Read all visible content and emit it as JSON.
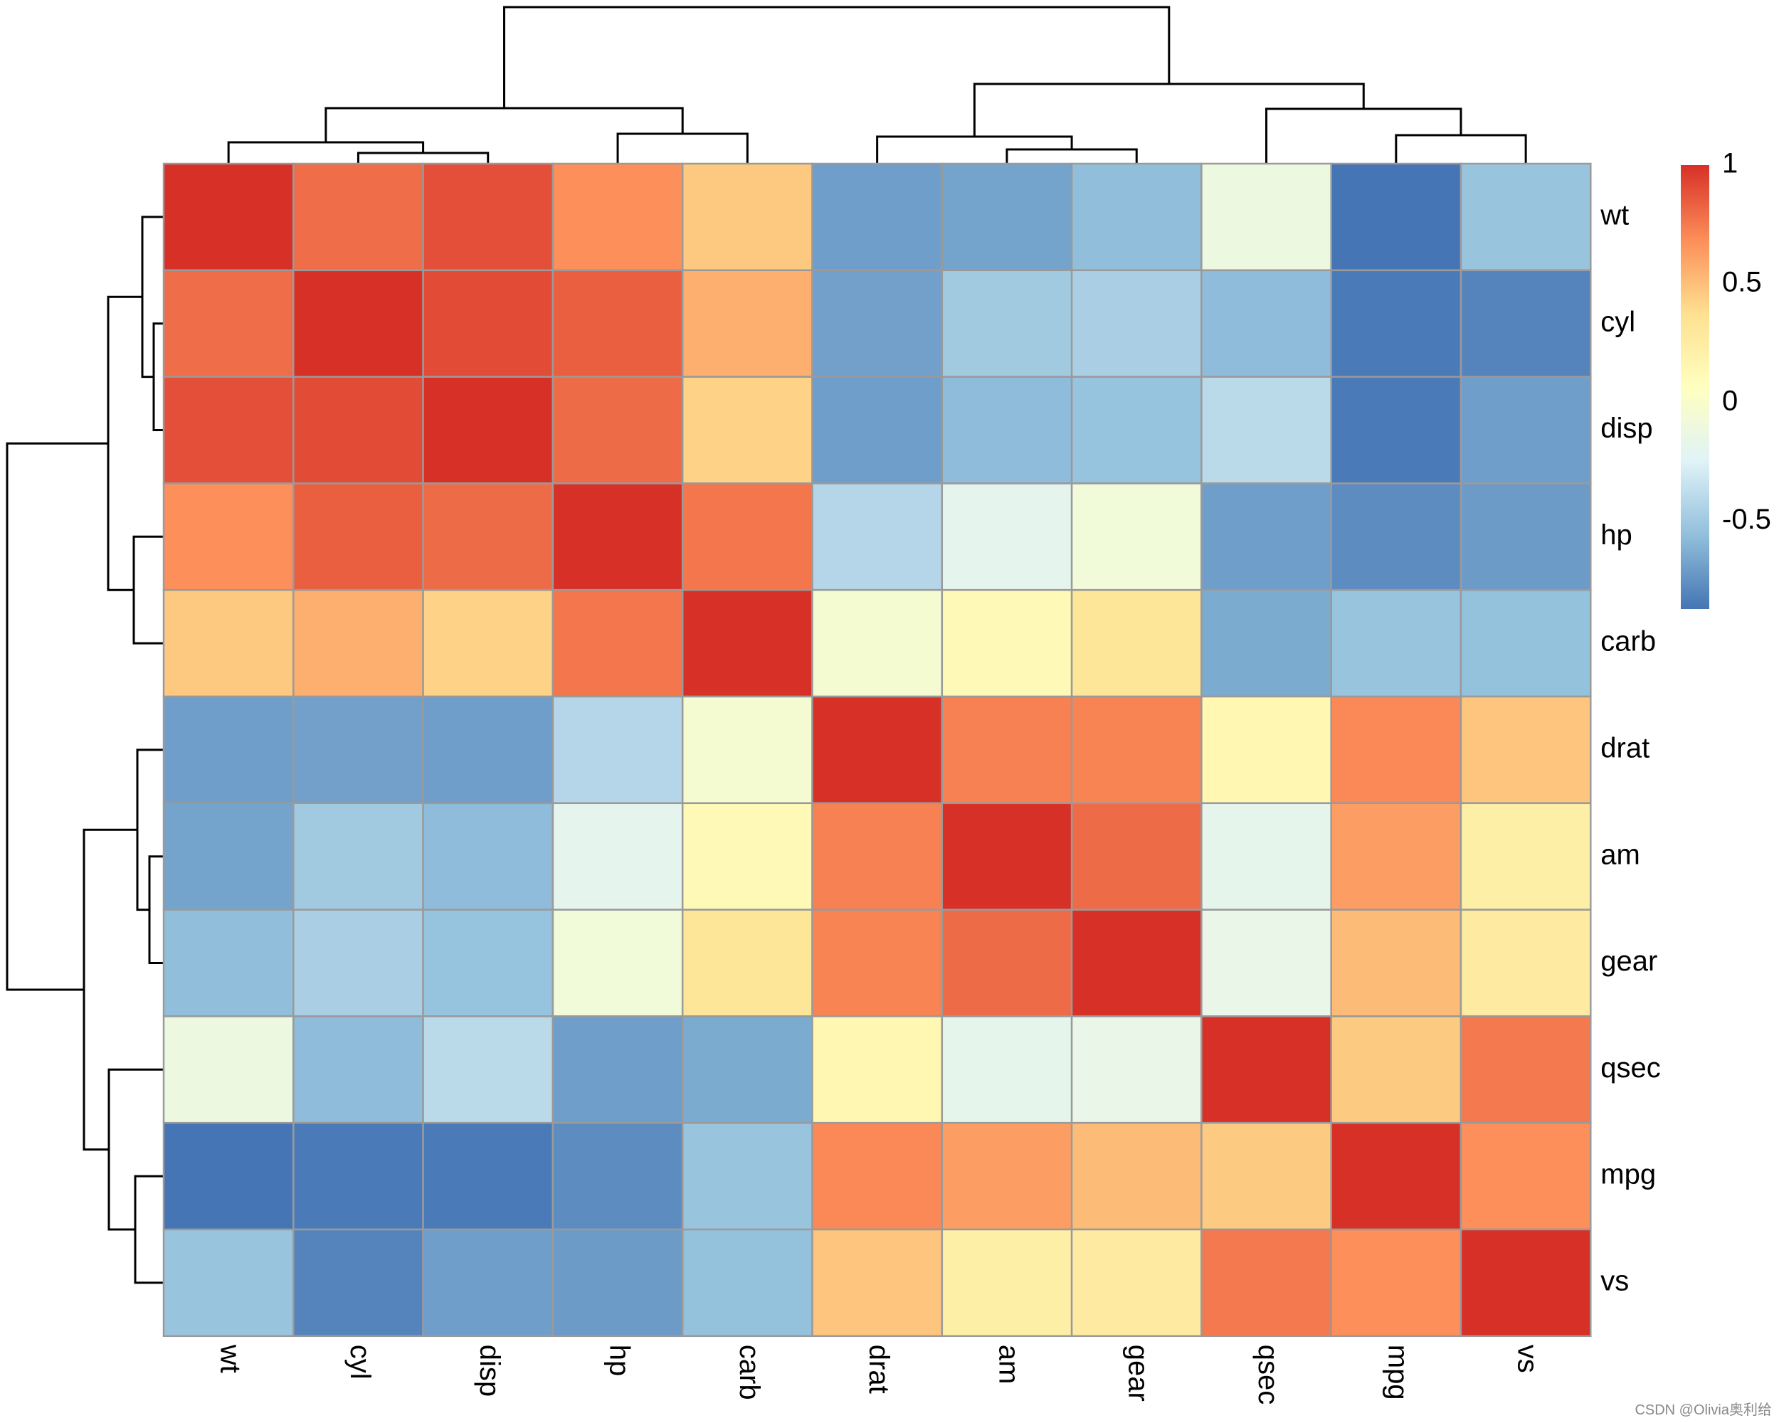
{
  "chart_data": {
    "type": "heatmap",
    "title": "",
    "rows": [
      "wt",
      "cyl",
      "disp",
      "hp",
      "carb",
      "drat",
      "am",
      "gear",
      "qsec",
      "mpg",
      "vs"
    ],
    "columns": [
      "wt",
      "cyl",
      "disp",
      "hp",
      "carb",
      "drat",
      "am",
      "gear",
      "qsec",
      "mpg",
      "vs"
    ],
    "values": [
      [
        1.0,
        0.78,
        0.89,
        0.66,
        0.43,
        -0.71,
        -0.69,
        -0.58,
        -0.17,
        -0.87,
        -0.55
      ],
      [
        0.78,
        1.0,
        0.9,
        0.83,
        0.53,
        -0.7,
        -0.52,
        -0.49,
        -0.59,
        -0.85,
        -0.81
      ],
      [
        0.89,
        0.9,
        1.0,
        0.79,
        0.39,
        -0.71,
        -0.59,
        -0.56,
        -0.43,
        -0.85,
        -0.71
      ],
      [
        0.66,
        0.83,
        0.79,
        1.0,
        0.75,
        -0.45,
        -0.24,
        -0.13,
        -0.71,
        -0.78,
        -0.72
      ],
      [
        0.43,
        0.53,
        0.39,
        0.75,
        1.0,
        -0.09,
        0.06,
        0.27,
        -0.66,
        -0.55,
        -0.57
      ],
      [
        -0.71,
        -0.7,
        -0.71,
        -0.45,
        -0.09,
        1.0,
        0.71,
        0.7,
        0.09,
        0.68,
        0.44
      ],
      [
        -0.69,
        -0.52,
        -0.59,
        -0.24,
        0.06,
        0.71,
        1.0,
        0.79,
        -0.23,
        0.6,
        0.17
      ],
      [
        -0.58,
        -0.49,
        -0.56,
        -0.13,
        0.27,
        0.7,
        0.79,
        1.0,
        -0.21,
        0.48,
        0.21
      ],
      [
        -0.17,
        -0.59,
        -0.43,
        -0.71,
        -0.66,
        0.09,
        -0.23,
        -0.21,
        1.0,
        0.42,
        0.74
      ],
      [
        -0.87,
        -0.85,
        -0.85,
        -0.78,
        -0.55,
        0.68,
        0.6,
        0.48,
        0.42,
        1.0,
        0.66
      ],
      [
        -0.55,
        -0.81,
        -0.71,
        -0.72,
        -0.57,
        0.44,
        0.17,
        0.21,
        0.74,
        0.66,
        1.0
      ]
    ],
    "value_range": [
      -0.87,
      1.0
    ],
    "colorbar": {
      "ticks": [
        1,
        0.5,
        0,
        -0.5
      ],
      "tick_labels": [
        "1",
        "0.5",
        "0",
        "-0.5"
      ],
      "palette": [
        "#4575b4",
        "#91bfdb",
        "#e0f3f8",
        "#ffffbf",
        "#fee090",
        "#fc8d59",
        "#d73027"
      ]
    },
    "dendrogram": {
      "clusters": [
        [
          "wt",
          "cyl",
          "disp",
          "hp",
          "carb"
        ],
        [
          "drat",
          "am",
          "gear",
          "qsec",
          "mpg",
          "vs"
        ]
      ]
    },
    "grid": true,
    "legend_position": "top-right"
  },
  "watermark": "CSDN @Olivia奥利给"
}
